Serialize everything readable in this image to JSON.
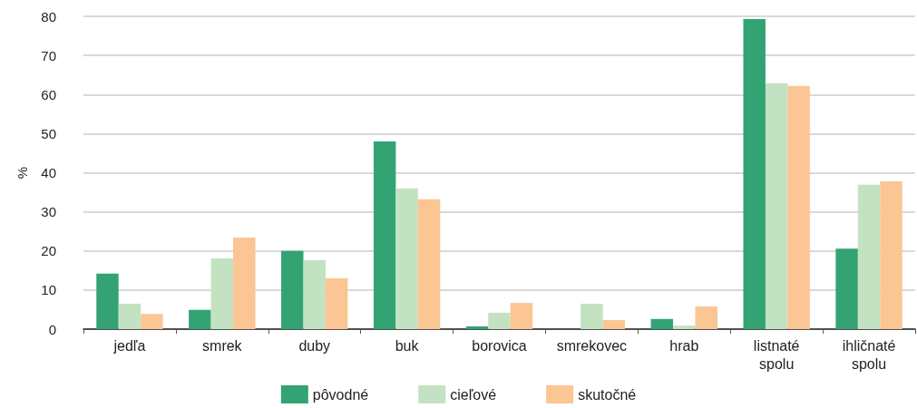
{
  "chart_data": {
    "type": "bar",
    "ylabel": "%",
    "categories": [
      "jedľa",
      "smrek",
      "duby",
      "buk",
      "borovica",
      "smrekovec",
      "hrab",
      "listnaté\nspolu",
      "ihličnaté\nspolu"
    ],
    "series": [
      {
        "name": "pôvodné",
        "color": "#33a374",
        "values": [
          14.2,
          4.9,
          20.0,
          48.0,
          0.7,
          0,
          2.6,
          79.3,
          20.6
        ]
      },
      {
        "name": "cieľové",
        "color": "#c3e2c1",
        "values": [
          6.5,
          18.1,
          17.6,
          36.0,
          4.2,
          6.5,
          0.9,
          62.9,
          36.9
        ]
      },
      {
        "name": "skutočné",
        "color": "#fbc594",
        "values": [
          3.9,
          23.4,
          13.0,
          33.2,
          6.7,
          2.3,
          5.8,
          62.2,
          37.8
        ]
      }
    ],
    "ylim": [
      0,
      80
    ],
    "yticks": [
      0,
      10,
      20,
      30,
      40,
      50,
      60,
      70,
      80
    ],
    "grid": "y",
    "legend": "bottom"
  }
}
